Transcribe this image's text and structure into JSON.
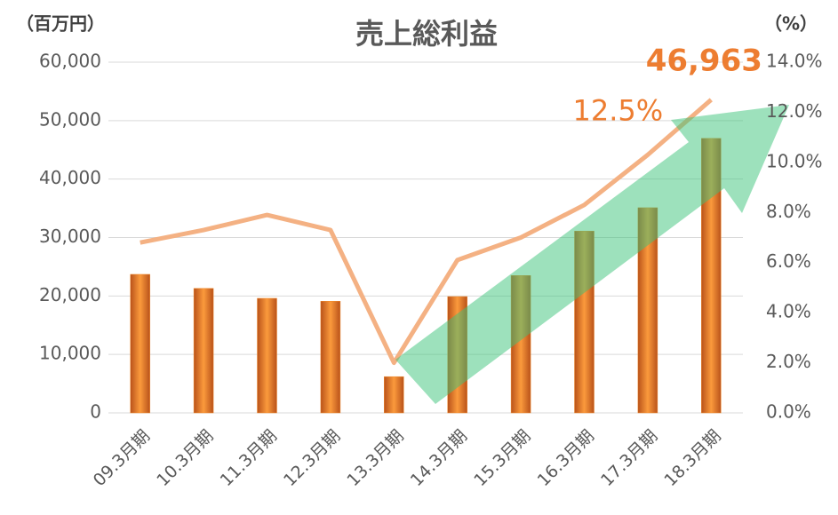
{
  "chart_data": {
    "type": "bar-line",
    "title": "売上総利益",
    "y_unit": "（百万円）",
    "y2_unit": "（%）",
    "categories": [
      "09.3月期",
      "10.3月期",
      "11.3月期",
      "12.3月期",
      "13.3月期",
      "14.3月期",
      "15.3月期",
      "16.3月期",
      "17.3月期",
      "18.3月期"
    ],
    "series": [
      {
        "type": "bar",
        "color": "#f08a2c",
        "values": [
          23700,
          21300,
          19600,
          19100,
          6200,
          19900,
          23500,
          31100,
          35100,
          46963
        ],
        "value_labels": [
          null,
          null,
          null,
          null,
          null,
          null,
          null,
          null,
          null,
          "46,963"
        ]
      },
      {
        "type": "line",
        "axis": "y2",
        "color": "#f4b183",
        "values": [
          6.8,
          7.3,
          7.9,
          7.3,
          2.0,
          6.1,
          7.0,
          8.3,
          10.3,
          12.5
        ],
        "value_labels": [
          null,
          null,
          null,
          null,
          null,
          null,
          null,
          null,
          null,
          "12.5%"
        ]
      }
    ],
    "ylim": [
      0,
      60000
    ],
    "yticks": [
      0,
      {
        "value": 10000,
        "label": "10,000"
      },
      {
        "value": 20000,
        "label": "20,000"
      },
      {
        "value": 30000,
        "label": "30,000"
      },
      {
        "value": 40000,
        "label": "40,000"
      },
      {
        "value": 50000,
        "label": "50,000"
      },
      {
        "value": 60000,
        "label": "60,000"
      }
    ],
    "y2lim": [
      0,
      14
    ],
    "y2ticks": [
      {
        "value": 0,
        "label": "0.0%"
      },
      {
        "value": 2,
        "label": "2.0%"
      },
      {
        "value": 4,
        "label": "4.0%"
      },
      {
        "value": 6,
        "label": "6.0%"
      },
      {
        "value": 8,
        "label": "8.0%"
      },
      {
        "value": 10,
        "label": "10.0%"
      },
      {
        "value": 12,
        "label": "12.0%"
      },
      {
        "value": 14,
        "label": "14.0%"
      }
    ],
    "grid": true
  }
}
